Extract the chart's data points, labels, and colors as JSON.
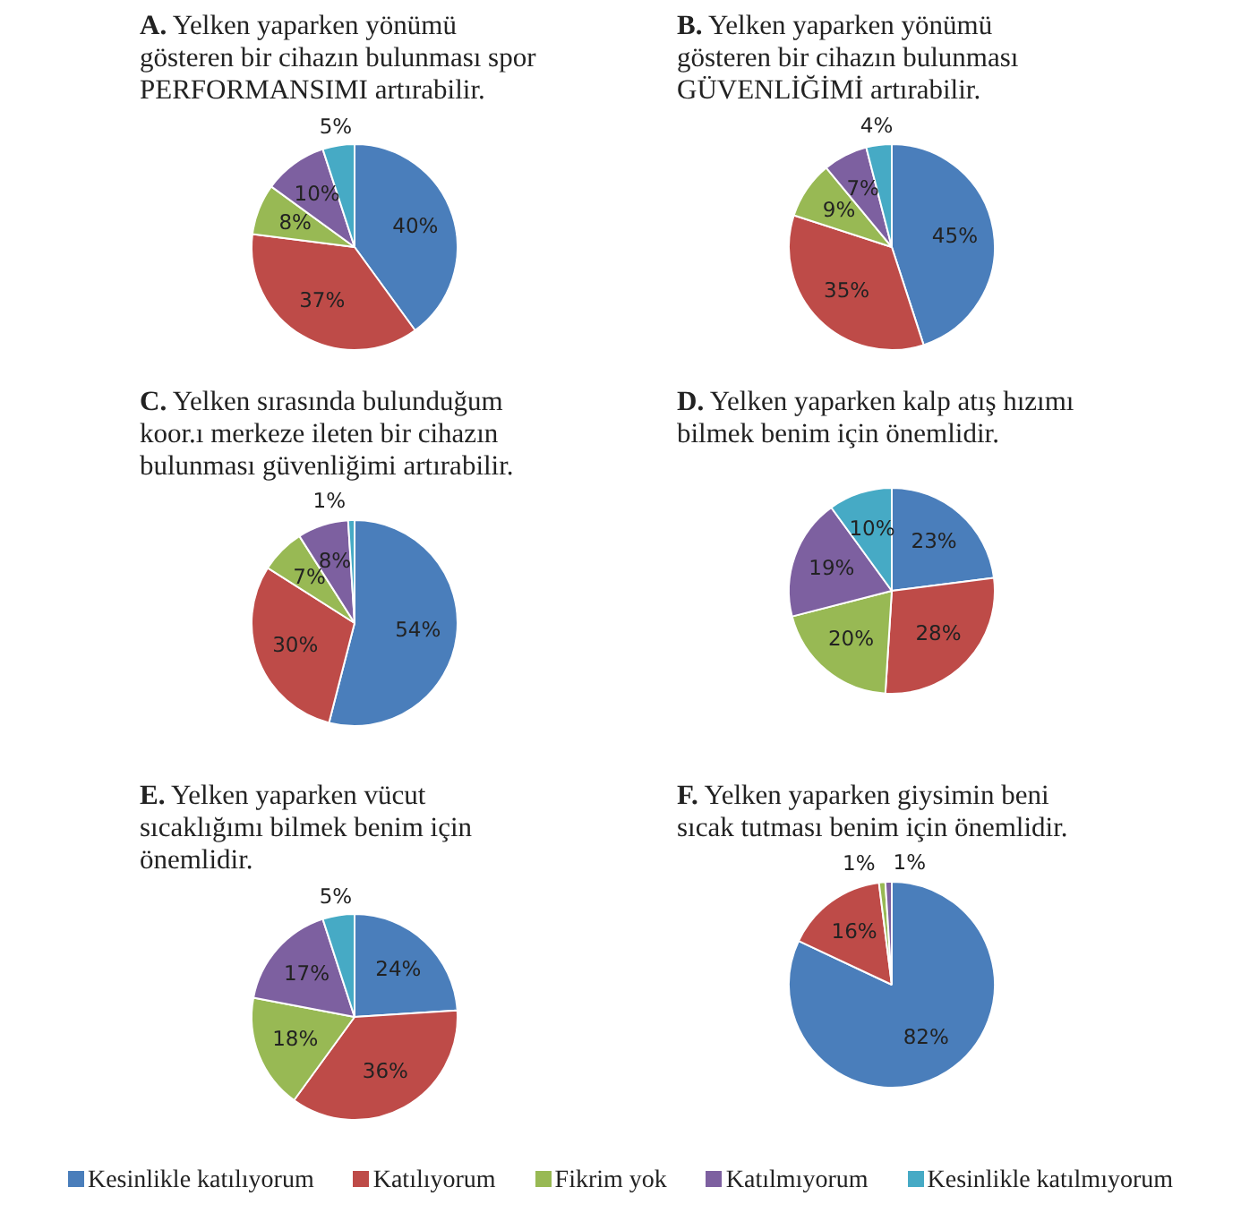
{
  "chart_data": [
    {
      "type": "pie",
      "title": "A.   Yelken yaparken yönümü gösteren bir cihazın bulunması spor PERFORMANSIMI artırabilir.",
      "categories": [
        "Kesinlikle katılıyorum",
        "Katılıyorum",
        "Fikrim yok",
        "Katılmıyorum",
        "Kesinlikle katılmıyorum"
      ],
      "values": [
        40,
        37,
        8,
        10,
        5
      ],
      "value_labels": [
        "40%",
        "37%",
        "8%",
        "10%",
        "5%"
      ],
      "colors": [
        "#4a7ebb",
        "#be4b48",
        "#98b954",
        "#7d60a0",
        "#46aac5"
      ],
      "legend": "bottom"
    },
    {
      "type": "pie",
      "title": "B.   Yelken yaparken yönümü gösteren bir cihazın bulunması GÜVENLİĞİMİ artırabilir.",
      "categories": [
        null,
        null,
        null,
        null,
        null
      ],
      "values": [
        45,
        35,
        9,
        7,
        4
      ],
      "value_labels": [
        "45%",
        "35%",
        "9%",
        "7%",
        "4%"
      ],
      "colors": [
        "#4a7ebb",
        "#be4b48",
        "#98b954",
        "#7d60a0",
        "#46aac5"
      ]
    },
    {
      "type": "pie",
      "title": "C.   Yelken sırasında bulunduğum koor.ı merkeze ileten bir cihazın bulunması güvenliğimi artırabilir.",
      "categories": [
        null,
        null,
        null,
        null,
        null
      ],
      "values": [
        54,
        30,
        7,
        8,
        1
      ],
      "value_labels": [
        "54%",
        "30%",
        "7%",
        "8%",
        "1%"
      ],
      "colors": [
        "#4a7ebb",
        "#be4b48",
        "#98b954",
        "#7d60a0",
        "#46aac5"
      ]
    },
    {
      "type": "pie",
      "title": "D.   Yelken yaparken kalp atış hızımı bilmek benim için önemlidir.",
      "categories": [
        null,
        null,
        null,
        null,
        null
      ],
      "values": [
        23,
        28,
        20,
        19,
        10
      ],
      "value_labels": [
        "23%",
        "28%",
        "20%",
        "19%",
        "10%"
      ],
      "colors": [
        "#4a7ebb",
        "#be4b48",
        "#98b954",
        "#7d60a0",
        "#46aac5"
      ]
    },
    {
      "type": "pie",
      "title": "E.   Yelken yaparken vücut sıcaklığımı bilmek benim için önemlidir.",
      "categories": [
        null,
        null,
        null,
        null,
        null
      ],
      "values": [
        24,
        36,
        18,
        17,
        5
      ],
      "value_labels": [
        "24%",
        "36%",
        "18%",
        "17%",
        "5%"
      ],
      "colors": [
        "#4a7ebb",
        "#be4b48",
        "#98b954",
        "#7d60a0",
        "#46aac5"
      ]
    },
    {
      "type": "pie",
      "title": "F.   Yelken yaparken giysimin beni sıcak tutması benim için önemlidir.",
      "categories": [
        null,
        null,
        null,
        null,
        null
      ],
      "values": [
        82,
        16,
        1,
        1,
        null
      ],
      "value_labels": [
        "82%",
        "16%",
        "1%",
        "1%",
        null
      ],
      "colors": [
        "#4a7ebb",
        "#be4b48",
        "#98b954",
        "#7d60a0",
        "#46aac5"
      ]
    }
  ]
}
